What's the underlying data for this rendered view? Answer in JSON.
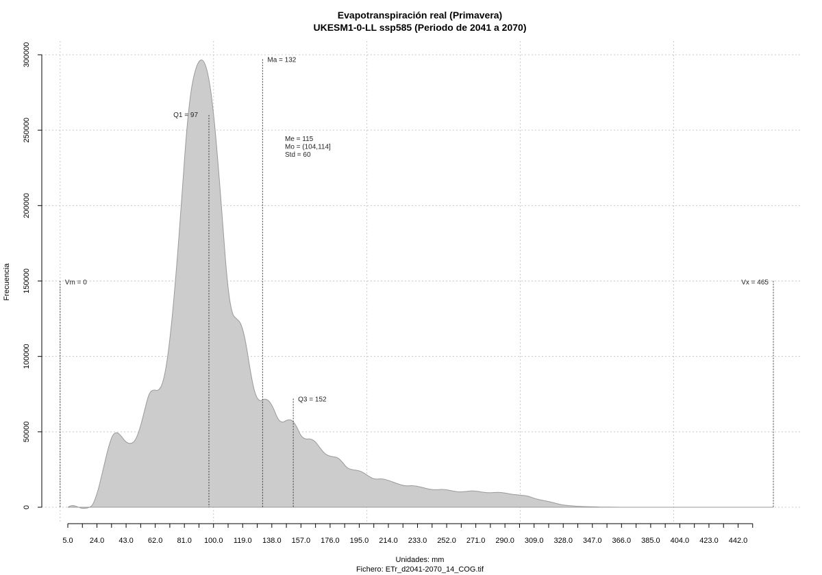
{
  "chart_data": {
    "type": "area",
    "title": "Evapotranspiración real (Primavera)",
    "subtitle": "UKESM1-0-LL ssp585 (Periodo de 2041 a 2070)",
    "xlabel": "Unidades: mm",
    "caption": "Fichero: ETr_d2041-2070_14_COG.tif",
    "ylabel": "Frecuencia",
    "xlim": [
      -0.5,
      475
    ],
    "ylim": [
      0,
      300000
    ],
    "grid": true,
    "fill_color": "#cccccc",
    "line_color": "#999999",
    "x_ticks": [
      5,
      24,
      43,
      62,
      81,
      100,
      119,
      138,
      157,
      176,
      195,
      214,
      233,
      252,
      271,
      290,
      309,
      328,
      347,
      366,
      385,
      404,
      423,
      442
    ],
    "x_tick_labels": [
      "5.0",
      "24.0",
      "43.0",
      "62.0",
      "81.0",
      "100.0",
      "119.0",
      "138.0",
      "157.0",
      "176.0",
      "195.0",
      "214.0",
      "233.0",
      "252.0",
      "271.0",
      "290.0",
      "309.0",
      "328.0",
      "347.0",
      "366.0",
      "385.0",
      "404.0",
      "423.0",
      "442.0"
    ],
    "x_gridlines": [
      0,
      100,
      200,
      300,
      400
    ],
    "y_ticks": [
      0,
      50000,
      100000,
      150000,
      200000,
      250000,
      300000
    ],
    "y_tick_labels": [
      "0",
      "50000",
      "100000",
      "150000",
      "200000",
      "250000",
      "300000"
    ],
    "x": [
      5,
      8,
      12,
      15,
      20,
      22,
      25,
      28,
      31,
      34,
      37,
      40,
      43,
      46,
      49,
      52,
      55,
      58,
      61,
      64,
      67,
      70,
      73,
      76,
      79,
      82,
      85,
      88,
      91,
      94,
      97,
      100,
      103,
      106,
      109,
      112,
      115,
      118,
      121,
      124,
      127,
      130,
      133,
      136,
      139,
      142,
      145,
      148,
      151,
      154,
      157,
      160,
      163,
      166,
      169,
      172,
      175,
      178,
      181,
      184,
      187,
      190,
      193,
      196,
      199,
      202,
      205,
      210,
      215,
      220,
      225,
      230,
      235,
      240,
      245,
      250,
      255,
      260,
      265,
      270,
      275,
      280,
      285,
      290,
      295,
      300,
      305,
      310,
      315,
      320,
      325,
      330,
      335,
      340,
      345,
      350,
      355,
      360,
      365,
      370,
      375,
      380,
      385,
      390,
      395,
      400,
      410,
      430,
      450,
      465
    ],
    "y": [
      0,
      1500,
      0,
      -1000,
      0,
      3000,
      12000,
      25000,
      38000,
      48000,
      50000,
      47000,
      43000,
      42000,
      44000,
      52000,
      64000,
      76000,
      78000,
      77000,
      82000,
      98000,
      125000,
      160000,
      200000,
      245000,
      275000,
      290000,
      297000,
      296000,
      285000,
      262000,
      228000,
      188000,
      148000,
      128000,
      125000,
      122000,
      110000,
      90000,
      75000,
      70000,
      72000,
      71000,
      66000,
      58000,
      56000,
      58000,
      58000,
      54000,
      47000,
      45000,
      45500,
      44000,
      40000,
      36000,
      34000,
      33500,
      33000,
      30000,
      26000,
      25000,
      24500,
      24000,
      22000,
      20000,
      18500,
      19000,
      17500,
      15500,
      14000,
      14500,
      13500,
      12000,
      11500,
      12000,
      11000,
      10000,
      10500,
      11000,
      10000,
      9500,
      10000,
      9500,
      8500,
      8000,
      7500,
      5500,
      4500,
      3500,
      2000,
      1200,
      800,
      500,
      300,
      200,
      100,
      50,
      20,
      0,
      0,
      0,
      0,
      0,
      0,
      0,
      0,
      0,
      0,
      0
    ],
    "markers": [
      {
        "label": "Vm = 0",
        "x": 0,
        "top": 150000
      },
      {
        "label": "Q1 = 97",
        "x": 97,
        "top": 260000
      },
      {
        "label": "Ma = 132",
        "x": 132,
        "top": 297000
      },
      {
        "label": "Q3 = 152",
        "x": 152,
        "top": 72000
      },
      {
        "label": "Vx = 465",
        "x": 465,
        "top": 150000
      }
    ],
    "stats": [
      "Me = 115",
      "Mo = (104,114]",
      "Std = 60"
    ]
  }
}
